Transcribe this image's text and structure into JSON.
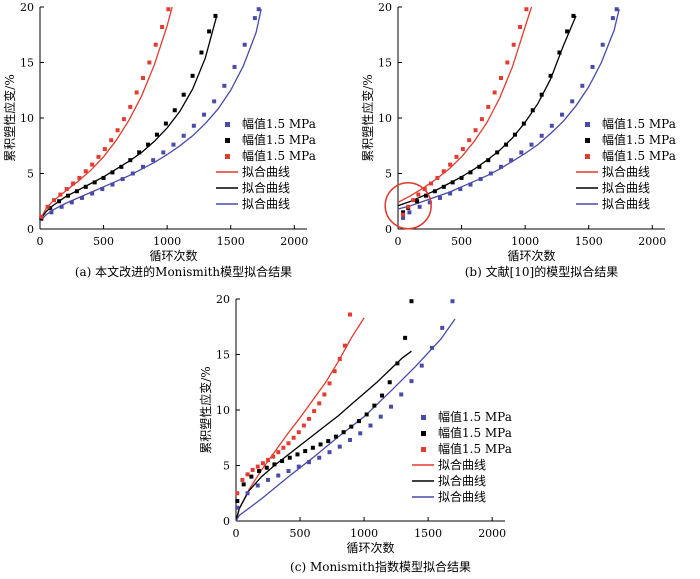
{
  "colors": {
    "blue": "#4a4aa8",
    "black": "#000000",
    "red": "#e03c31"
  },
  "legend": {
    "series": [
      "幅值1.5 MPa",
      "幅值1.5 MPa",
      "幅值1.5 MPa"
    ],
    "fits": [
      "拟合曲线",
      "拟合曲线",
      "拟合曲线"
    ]
  },
  "chart_data": [
    {
      "type": "scatter",
      "caption": "(a) 本文改进的Monismith模型拟合结果",
      "xlabel": "循环次数",
      "ylabel": "累积塑性应变/%",
      "xlim": [
        0,
        2100
      ],
      "ylim": [
        0,
        20
      ],
      "xticks": [
        "0",
        "500",
        "1000",
        "1500",
        "2000"
      ],
      "yticks": [
        "0",
        "5",
        "10",
        "15",
        "20"
      ],
      "legend_position": "right",
      "series": [
        {
          "name": "幅值1.5 MPa",
          "color": "blue",
          "x": [
            10,
            90,
            170,
            250,
            330,
            410,
            490,
            570,
            650,
            730,
            810,
            890,
            970,
            1050,
            1130,
            1210,
            1290,
            1370,
            1450,
            1530,
            1610,
            1690,
            1720
          ],
          "y": [
            0.9,
            1.5,
            2.0,
            2.4,
            2.8,
            3.2,
            3.6,
            4.0,
            4.5,
            5.0,
            5.6,
            6.2,
            6.9,
            7.6,
            8.4,
            9.3,
            10.3,
            11.5,
            12.9,
            14.6,
            16.6,
            19.0,
            19.8
          ]
        },
        {
          "name": "幅值1.5 MPa",
          "color": "black",
          "x": [
            10,
            80,
            150,
            220,
            290,
            360,
            430,
            500,
            570,
            640,
            710,
            780,
            850,
            920,
            990,
            1060,
            1130,
            1200,
            1270,
            1330,
            1380
          ],
          "y": [
            1.0,
            1.9,
            2.5,
            3.0,
            3.4,
            3.8,
            4.2,
            4.6,
            5.1,
            5.6,
            6.2,
            6.9,
            7.6,
            8.5,
            9.5,
            10.7,
            12.1,
            13.8,
            15.9,
            17.8,
            19.2
          ]
        },
        {
          "name": "幅值1.5 MPa",
          "color": "red",
          "x": [
            10,
            60,
            110,
            160,
            210,
            260,
            310,
            360,
            410,
            460,
            510,
            560,
            610,
            660,
            710,
            760,
            810,
            860,
            910,
            960,
            1010
          ],
          "y": [
            1.1,
            2.0,
            2.6,
            3.1,
            3.6,
            4.1,
            4.6,
            5.2,
            5.8,
            6.5,
            7.2,
            8.0,
            8.9,
            9.9,
            11.0,
            12.3,
            13.6,
            15.0,
            16.6,
            18.2,
            19.8
          ]
        }
      ],
      "fits": [
        {
          "name": "拟合曲线",
          "color": "red",
          "x": [
            0,
            50,
            100,
            200,
            300,
            400,
            500,
            600,
            700,
            800,
            900,
            1000,
            1040
          ],
          "y": [
            0.8,
            1.9,
            2.5,
            3.4,
            4.3,
            5.3,
            6.5,
            8.0,
            9.8,
            12.0,
            14.8,
            18.3,
            20.0
          ]
        },
        {
          "name": "拟合曲线",
          "color": "black",
          "x": [
            0,
            50,
            100,
            200,
            300,
            400,
            500,
            600,
            700,
            800,
            900,
            1000,
            1100,
            1200,
            1300,
            1390
          ],
          "y": [
            0.8,
            1.6,
            2.1,
            2.9,
            3.5,
            4.1,
            4.7,
            5.4,
            6.1,
            6.9,
            7.9,
            9.1,
            10.6,
            12.6,
            15.4,
            19.2
          ]
        },
        {
          "name": "拟合曲线",
          "color": "blue",
          "x": [
            0,
            50,
            100,
            200,
            300,
            400,
            500,
            600,
            700,
            800,
            900,
            1000,
            1100,
            1200,
            1300,
            1400,
            1500,
            1600,
            1700,
            1740
          ],
          "y": [
            0.7,
            1.3,
            1.7,
            2.3,
            2.8,
            3.3,
            3.8,
            4.3,
            4.8,
            5.4,
            6.0,
            6.7,
            7.5,
            8.4,
            9.5,
            10.8,
            12.5,
            14.7,
            17.7,
            19.8
          ]
        }
      ]
    },
    {
      "type": "scatter",
      "caption": "(b) 文献[10]的模型拟合结果",
      "xlabel": "循环次数",
      "ylabel": "累积塑性应变/%",
      "xlim": [
        0,
        2100
      ],
      "ylim": [
        0,
        20
      ],
      "xticks": [
        "0",
        "500",
        "1000",
        "1500",
        "2000"
      ],
      "yticks": [
        "0",
        "5",
        "10",
        "15",
        "20"
      ],
      "legend_position": "right",
      "annotation": {
        "type": "circle",
        "color": "red",
        "cx": 80,
        "cy": 2.1
      },
      "series": [
        {
          "name": "幅值1.5 MPa",
          "color": "blue",
          "x": [
            40,
            90,
            170,
            250,
            330,
            410,
            490,
            570,
            650,
            730,
            810,
            890,
            970,
            1050,
            1130,
            1210,
            1290,
            1370,
            1450,
            1530,
            1610,
            1690,
            1720
          ],
          "y": [
            1.0,
            1.5,
            2.0,
            2.4,
            2.8,
            3.2,
            3.6,
            4.0,
            4.5,
            5.0,
            5.6,
            6.2,
            6.9,
            7.6,
            8.4,
            9.3,
            10.3,
            11.5,
            12.9,
            14.6,
            16.6,
            19.0,
            19.8
          ]
        },
        {
          "name": "幅值1.5 MPa",
          "color": "black",
          "x": [
            40,
            80,
            150,
            220,
            290,
            360,
            430,
            500,
            570,
            640,
            710,
            780,
            850,
            920,
            990,
            1060,
            1130,
            1200,
            1270,
            1330,
            1380
          ],
          "y": [
            1.5,
            1.9,
            2.5,
            3.0,
            3.4,
            3.8,
            4.2,
            4.6,
            5.1,
            5.6,
            6.2,
            6.9,
            7.6,
            8.5,
            9.5,
            10.7,
            12.1,
            13.8,
            15.9,
            17.8,
            19.2
          ]
        },
        {
          "name": "幅值1.5 MPa",
          "color": "red",
          "x": [
            40,
            80,
            120,
            160,
            210,
            260,
            310,
            360,
            410,
            460,
            510,
            560,
            610,
            660,
            710,
            760,
            810,
            860,
            910,
            960,
            1010
          ],
          "y": [
            1.3,
            2.0,
            2.6,
            3.1,
            3.6,
            4.1,
            4.6,
            5.2,
            5.8,
            6.5,
            7.2,
            8.0,
            8.9,
            9.9,
            11.0,
            12.3,
            13.6,
            15.0,
            16.6,
            18.2,
            19.8
          ]
        }
      ],
      "fits": [
        {
          "name": "拟合曲线",
          "color": "red",
          "x": [
            0,
            100,
            200,
            300,
            400,
            500,
            600,
            700,
            800,
            900,
            1000,
            1050
          ],
          "y": [
            2.4,
            3.0,
            3.7,
            4.5,
            5.4,
            6.5,
            7.9,
            9.6,
            11.8,
            14.6,
            18.2,
            20.0
          ]
        },
        {
          "name": "拟合曲线",
          "color": "black",
          "x": [
            0,
            100,
            200,
            300,
            400,
            500,
            600,
            700,
            800,
            900,
            1000,
            1100,
            1200,
            1300,
            1400
          ],
          "y": [
            2.1,
            2.5,
            3.0,
            3.5,
            4.1,
            4.7,
            5.4,
            6.2,
            7.1,
            8.2,
            9.6,
            11.3,
            13.5,
            16.5,
            19.2
          ]
        },
        {
          "name": "拟合曲线",
          "color": "blue",
          "x": [
            0,
            100,
            200,
            300,
            400,
            500,
            600,
            700,
            800,
            900,
            1000,
            1100,
            1200,
            1300,
            1400,
            1500,
            1600,
            1700,
            1740
          ],
          "y": [
            1.8,
            2.1,
            2.5,
            2.9,
            3.3,
            3.8,
            4.3,
            4.8,
            5.4,
            6.1,
            6.8,
            7.6,
            8.6,
            9.7,
            11.1,
            12.8,
            15.0,
            17.9,
            19.8
          ]
        }
      ]
    },
    {
      "type": "scatter",
      "caption": "(c) Monismith指数模型拟合结果",
      "xlabel": "循环次数",
      "ylabel": "累积塑性应变/%",
      "xlim": [
        0,
        2100
      ],
      "ylim": [
        0,
        20
      ],
      "xticks": [
        "0",
        "500",
        "1000",
        "1500",
        "2000"
      ],
      "yticks": [
        "0",
        "5",
        "10",
        "15",
        "20"
      ],
      "legend_position": "right",
      "series": [
        {
          "name": "幅值1.5 MPa",
          "color": "blue",
          "x": [
            10,
            90,
            170,
            250,
            330,
            410,
            490,
            570,
            650,
            730,
            810,
            890,
            970,
            1050,
            1130,
            1210,
            1290,
            1370,
            1450,
            1530,
            1610,
            1690
          ],
          "y": [
            1.2,
            2.5,
            3.2,
            3.7,
            4.1,
            4.5,
            4.9,
            5.3,
            5.7,
            6.2,
            6.7,
            7.3,
            7.9,
            8.6,
            9.4,
            10.3,
            11.4,
            12.6,
            14.0,
            15.6,
            17.4,
            19.8
          ]
        },
        {
          "name": "幅值1.5 MPa",
          "color": "black",
          "x": [
            10,
            60,
            120,
            180,
            240,
            300,
            360,
            420,
            480,
            540,
            600,
            660,
            720,
            780,
            840,
            900,
            960,
            1020,
            1080,
            1140,
            1200,
            1260,
            1320,
            1370
          ],
          "y": [
            1.8,
            3.3,
            4.0,
            4.5,
            4.8,
            5.1,
            5.4,
            5.7,
            6.0,
            6.3,
            6.6,
            6.9,
            7.2,
            7.6,
            8.0,
            8.5,
            9.0,
            9.6,
            10.4,
            11.3,
            12.5,
            14.2,
            16.5,
            19.8
          ]
        },
        {
          "name": "幅值1.5 MPa",
          "color": "red",
          "x": [
            10,
            50,
            90,
            130,
            170,
            210,
            250,
            290,
            330,
            370,
            410,
            450,
            490,
            530,
            570,
            610,
            650,
            690,
            730,
            770,
            810,
            850,
            890
          ],
          "y": [
            2.5,
            3.7,
            4.2,
            4.6,
            4.9,
            5.2,
            5.5,
            5.8,
            6.2,
            6.6,
            7.0,
            7.5,
            8.0,
            8.6,
            9.2,
            9.9,
            10.6,
            11.4,
            12.4,
            13.5,
            14.6,
            15.8,
            18.6
          ]
        }
      ],
      "fits": [
        {
          "name": "拟合曲线",
          "color": "red",
          "x": [
            0,
            25,
            100,
            200,
            300,
            400,
            500,
            600,
            700,
            800,
            900,
            1000
          ],
          "y": [
            0,
            1.1,
            2.8,
            4.6,
            6.2,
            7.8,
            9.3,
            10.9,
            12.5,
            14.4,
            16.5,
            18.3
          ]
        },
        {
          "name": "拟合曲线",
          "color": "black",
          "x": [
            0,
            25,
            100,
            200,
            300,
            400,
            500,
            600,
            700,
            800,
            900,
            1000,
            1100,
            1200,
            1300,
            1370
          ],
          "y": [
            0,
            1.1,
            2.7,
            4.0,
            5.0,
            5.9,
            6.8,
            7.7,
            8.6,
            9.5,
            10.5,
            11.5,
            12.5,
            13.6,
            14.7,
            15.3
          ]
        },
        {
          "name": "拟合曲线",
          "color": "blue",
          "x": [
            0,
            25,
            200,
            400,
            600,
            800,
            1000,
            1200,
            1400,
            1600,
            1710
          ],
          "y": [
            0,
            0.5,
            2.0,
            3.9,
            5.7,
            7.6,
            9.4,
            11.6,
            13.9,
            16.4,
            18.2
          ]
        }
      ]
    }
  ]
}
